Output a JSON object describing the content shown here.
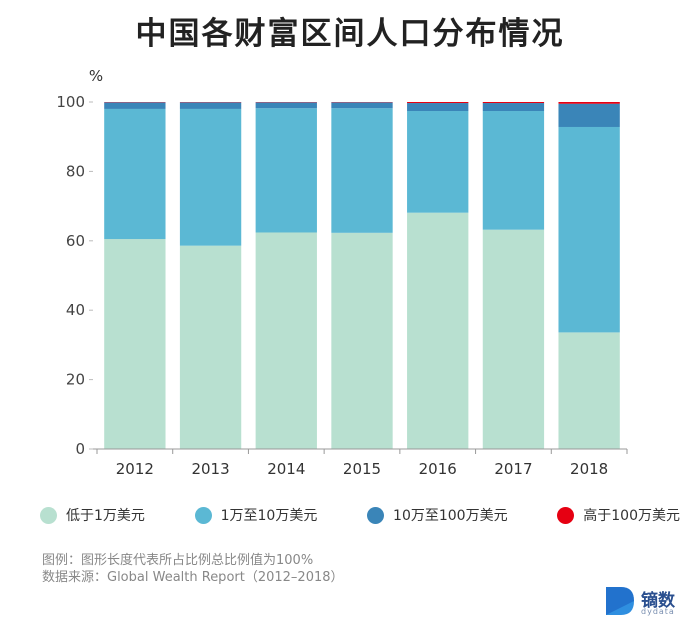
{
  "title": "中国各财富区间人口分布情况",
  "chart_data": {
    "type": "bar",
    "stacked": true,
    "ylabel": "%",
    "ylim": [
      0,
      100
    ],
    "yticks": [
      0,
      20,
      40,
      60,
      80,
      100
    ],
    "categories": [
      "2012",
      "2013",
      "2014",
      "2015",
      "2016",
      "2017",
      "2018"
    ],
    "series": [
      {
        "name": "低于1万美元",
        "color": "#b8e0d0",
        "values": [
          60.5,
          58.6,
          62.4,
          62.3,
          68.1,
          63.2,
          33.6
        ]
      },
      {
        "name": "1万至10万美元",
        "color": "#5bb8d4",
        "values": [
          37.5,
          39.4,
          35.8,
          35.9,
          29.3,
          34.2,
          59.2
        ]
      },
      {
        "name": "10万至100万美元",
        "color": "#3a85b8",
        "values": [
          1.9,
          1.9,
          1.7,
          1.7,
          2.3,
          2.3,
          6.7
        ]
      },
      {
        "name": "高于100万美元",
        "color": "#e60012",
        "values": [
          0.1,
          0.1,
          0.1,
          0.1,
          0.3,
          0.3,
          0.5
        ]
      }
    ],
    "grid": false,
    "legend_position": "bottom"
  },
  "notes": {
    "line1": "图例：图形长度代表所占比例总比例值为100%",
    "line2": "数据来源：Global Wealth Report（2012–2018）"
  },
  "brand": {
    "name": "镝数",
    "sub": "dydata"
  }
}
